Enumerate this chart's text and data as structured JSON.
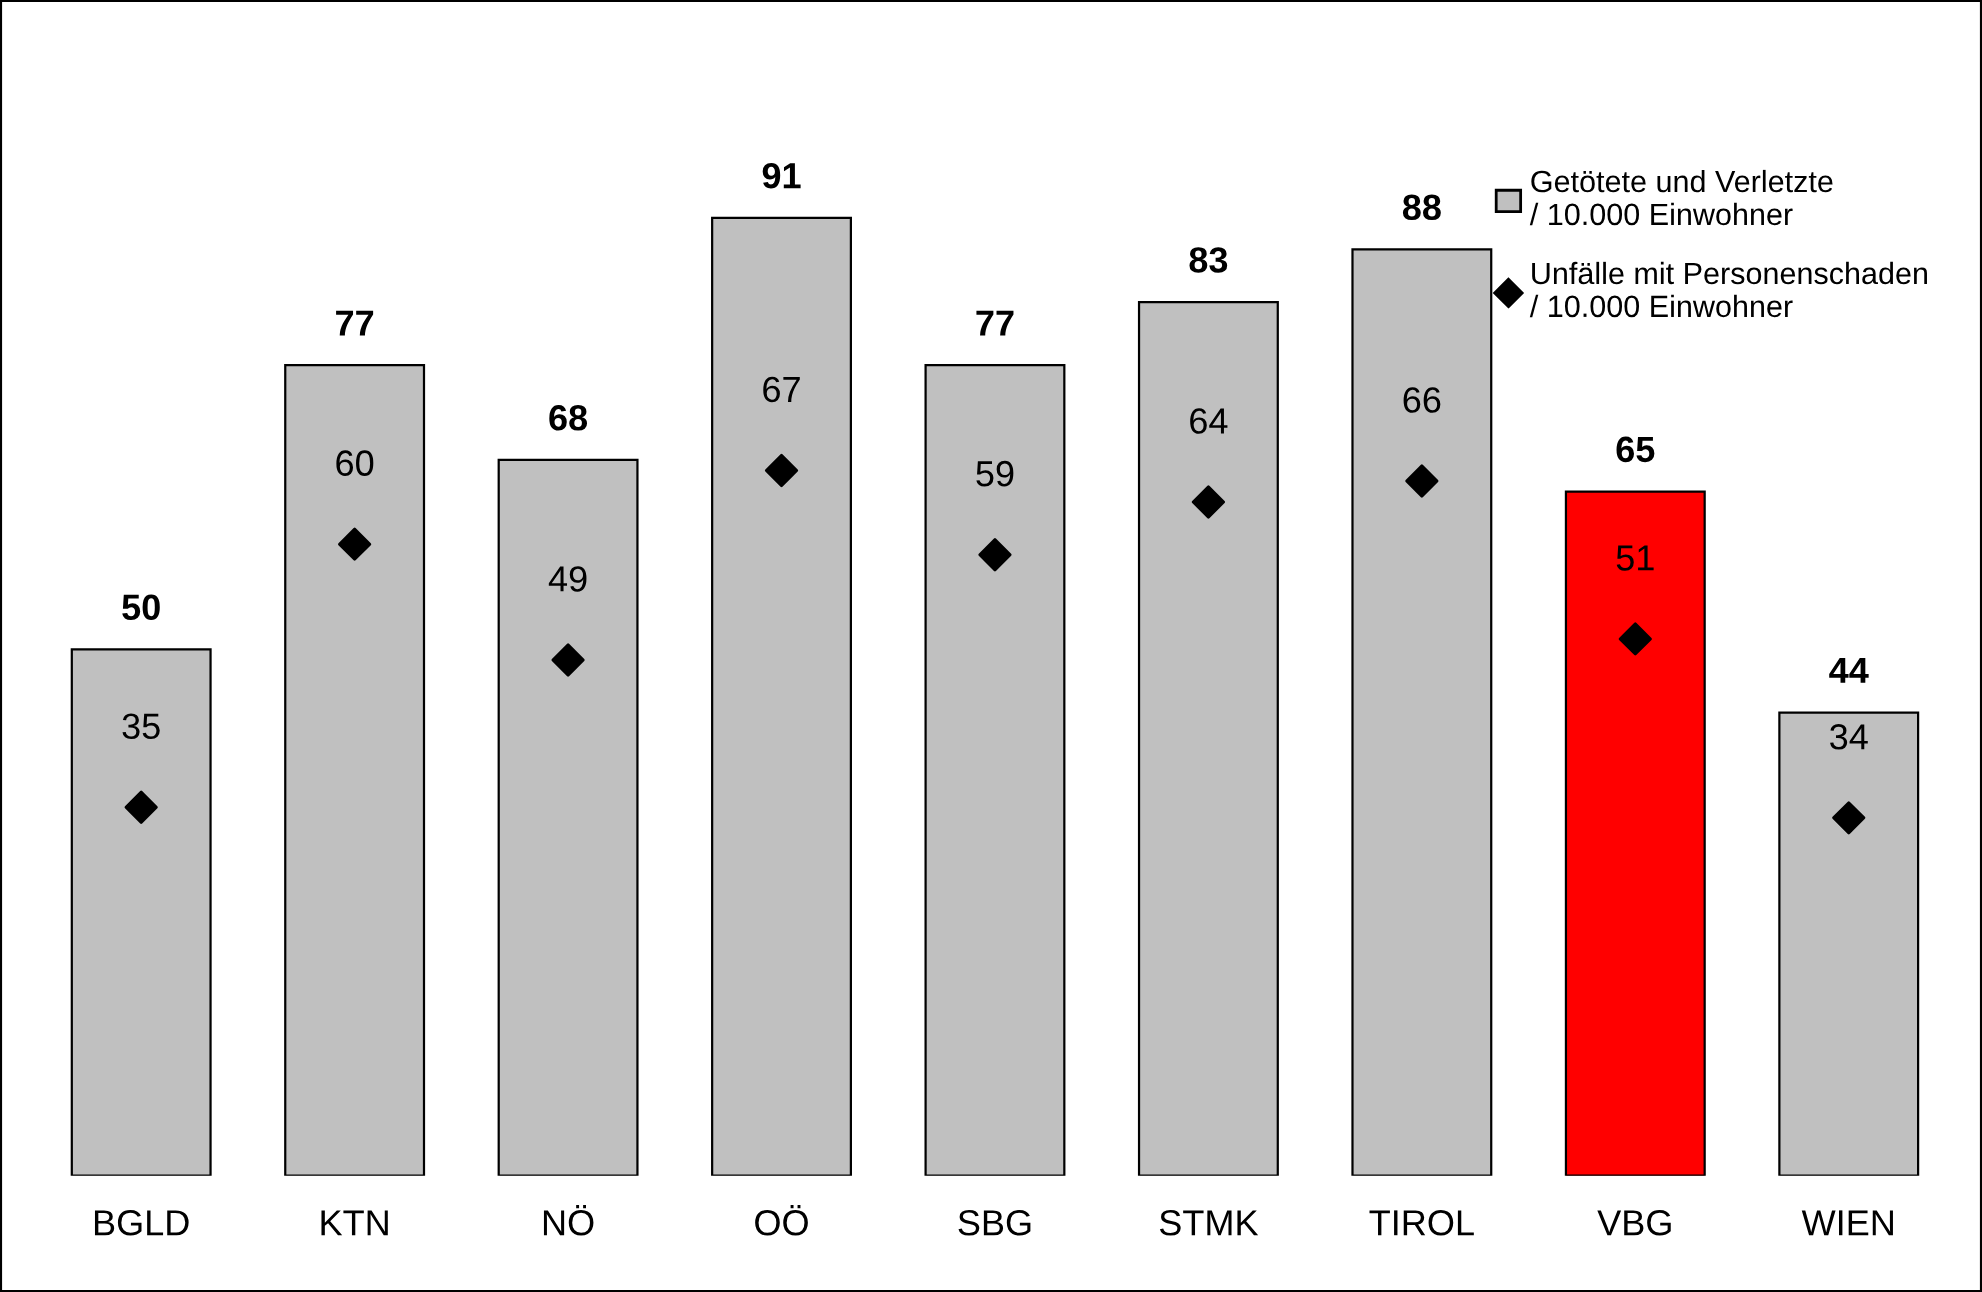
{
  "chart_data": {
    "type": "bar",
    "categories": [
      "BGLD",
      "KTN",
      "NÖ",
      "OÖ",
      "SBG",
      "STMK",
      "TIROL",
      "VBG",
      "WIEN"
    ],
    "series": [
      {
        "name": "Getötete und Verletzte / 10.000 Einwohner",
        "color": "#c0c0c0",
        "colors": [
          "#c0c0c0",
          "#c0c0c0",
          "#c0c0c0",
          "#c0c0c0",
          "#c0c0c0",
          "#c0c0c0",
          "#c0c0c0",
          "#ff0000",
          "#c0c0c0"
        ],
        "values": [
          50,
          77,
          68,
          91,
          77,
          83,
          88,
          65,
          44
        ]
      },
      {
        "name": "Unfälle mit Personenschaden / 10.000 Einwohner",
        "type": "scatter",
        "color": "#000000",
        "marker": "diamond",
        "values": [
          35,
          60,
          49,
          67,
          59,
          64,
          66,
          51,
          34
        ]
      }
    ],
    "data_labels": true,
    "legend": "top right",
    "grid": false,
    "tick_labels": "x"
  }
}
